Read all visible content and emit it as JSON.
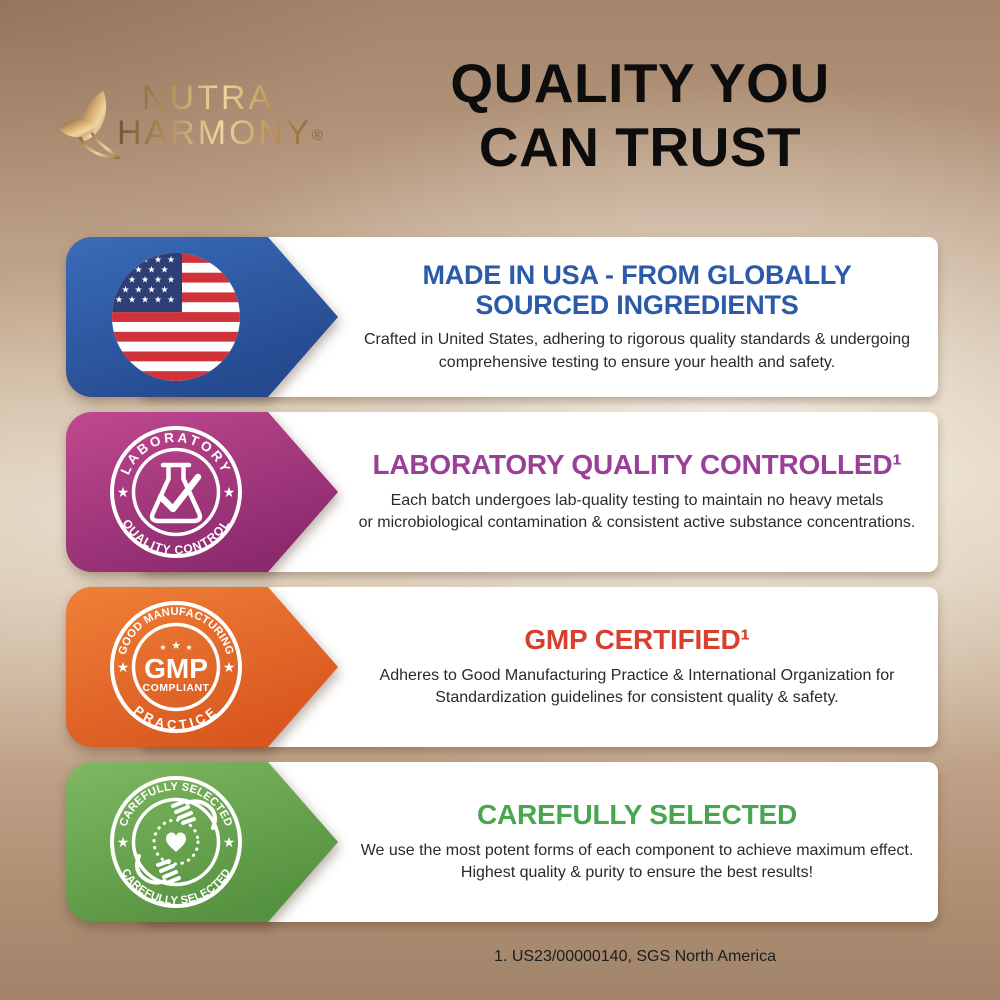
{
  "logo": {
    "name_line1": "NUTRA",
    "name_line2": "HARMONY",
    "registered": "®"
  },
  "title": "QUALITY YOU\nCAN TRUST",
  "icons": {
    "star": "★"
  },
  "palette": {
    "background_tan": "#c3a98d",
    "banner_blue": [
      "#3a6cb8",
      "#24498e"
    ],
    "banner_magenta": [
      "#c0498f",
      "#8c2a6e"
    ],
    "banner_orange": [
      "#ef8038",
      "#d9571f"
    ],
    "banner_green": [
      "#80b863",
      "#55923f"
    ],
    "flag_red": "#cf3339",
    "flag_navy": "#2e3f76",
    "gold": "#c59a5d"
  },
  "banners": [
    {
      "heading": "MADE IN USA - FROM GLOBALLY\nSOURCED INGREDIENTS",
      "body": "Crafted in United States, adhering to rigorous quality standards & undergoing\ncomprehensive testing to ensure your health and safety.",
      "badge_icon": "usa-flag-icon",
      "colors": {
        "heading": "#2b5ba8",
        "badge_start": "#3a6cb8",
        "badge_end": "#24498e"
      }
    },
    {
      "heading": "LABORATORY QUALITY CONTROLLED¹",
      "body": "Each batch undergoes lab-quality testing to maintain no heavy metals\nor microbiological contamination & consistent active substance concentrations.",
      "badge_icon": "flask-check-icon",
      "seal": {
        "top": "LABORATORY",
        "bottom": "QUALITY CONTROL"
      },
      "colors": {
        "heading": "#9a3f98",
        "badge_start": "#c0498f",
        "badge_end": "#8c2a6e"
      }
    },
    {
      "heading": "GMP CERTIFIED¹",
      "body": "Adheres to Good Manufacturing Practice & International Organization for\nStandardization guidelines for consistent quality & safety.",
      "badge_icon": "gmp-seal-icon",
      "seal": {
        "top": "GOOD MANUFACTURING",
        "bottom": "PRACTICE",
        "center_main": "GMP",
        "center_sub": "COMPLIANT"
      },
      "colors": {
        "heading": "#d8402e",
        "badge_start": "#ef8038",
        "badge_end": "#d9571f"
      }
    },
    {
      "heading": "CAREFULLY SELECTED",
      "body": "We use the most potent forms of each component to achieve maximum effect.\nHighest quality & purity to ensure the best results!",
      "badge_icon": "hands-heart-icon",
      "seal": {
        "top": "CAREFULLY SELECTED",
        "bottom": "CAREFULLY SELECTED"
      },
      "colors": {
        "heading": "#47a64e",
        "badge_start": "#80b863",
        "badge_end": "#55923f"
      }
    }
  ],
  "footnote": "1. US23/00000140, SGS North America"
}
